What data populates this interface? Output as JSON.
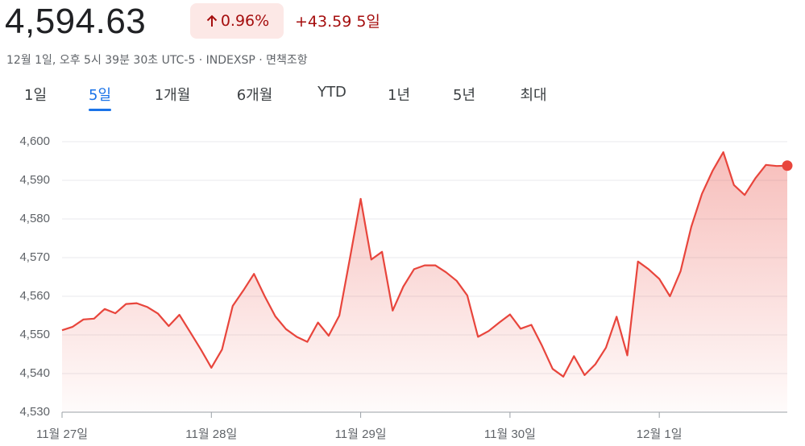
{
  "header": {
    "price": "4,594.63",
    "change_percent": "0.96%",
    "change": "+43.59",
    "period": "5일",
    "subtitle": "12월 1일, 오후 5시 39분 30초 UTC-5 · INDEXSP · 면책조항"
  },
  "tabs": [
    "1일",
    "5일",
    "1개월",
    "6개월",
    "YTD",
    "1년",
    "5년",
    "최대"
  ],
  "selected_tab": 1,
  "chart_data": {
    "type": "area",
    "color": "#e8453c",
    "grid": true,
    "categories": [
      "11월 27일",
      null,
      null,
      null,
      null,
      null,
      null,
      null,
      null,
      null,
      null,
      null,
      null,
      null,
      "11월 28일",
      null,
      null,
      null,
      null,
      null,
      null,
      null,
      null,
      null,
      null,
      null,
      null,
      null,
      "11월 29일",
      null,
      null,
      null,
      null,
      null,
      null,
      null,
      null,
      null,
      null,
      null,
      null,
      null,
      "11월 30일",
      null,
      null,
      null,
      null,
      null,
      null,
      null,
      null,
      null,
      null,
      null,
      null,
      null,
      "12월 1일",
      null,
      null,
      null,
      null,
      null,
      null,
      null,
      null,
      null,
      null,
      null,
      null
    ],
    "values": [
      4551.2,
      4552.1,
      4554.0,
      4554.2,
      4556.7,
      4555.6,
      4558.0,
      4558.2,
      4557.2,
      4555.5,
      4552.3,
      4555.2,
      4550.8,
      4546.3,
      4541.5,
      4546.2,
      4557.5,
      4561.5,
      4565.8,
      4560.0,
      4554.8,
      4551.5,
      4549.5,
      4548.2,
      4553.2,
      4549.8,
      4555.0,
      4570.0,
      4585.2,
      4569.5,
      4571.5,
      4556.3,
      4562.5,
      4567.0,
      4568.0,
      4568.0,
      4566.2,
      4564.0,
      4560.2,
      4549.5,
      4551.0,
      4553.2,
      4555.3,
      4551.6,
      4552.6,
      4547.2,
      4541.2,
      4539.2,
      4544.5,
      4539.6,
      4542.4,
      4546.7,
      4554.7,
      4544.7,
      4569.0,
      4567.0,
      4564.5,
      4560.0,
      4566.5,
      4578.0,
      4586.5,
      4592.5,
      4597.3,
      4588.8,
      4586.2,
      4590.5,
      4594.0,
      4593.7,
      4593.8
    ],
    "ylim": [
      4530,
      4600
    ],
    "yticks": [
      {
        "value": 4530,
        "label": "4,530"
      },
      {
        "value": 4540,
        "label": "4,540"
      },
      {
        "value": 4550,
        "label": "4,550"
      },
      {
        "value": 4560,
        "label": "4,560"
      },
      {
        "value": 4570,
        "label": "4,570"
      },
      {
        "value": 4580,
        "label": "4,580"
      },
      {
        "value": 4590,
        "label": "4,590"
      },
      {
        "value": 4600,
        "label": "4,600"
      }
    ]
  }
}
